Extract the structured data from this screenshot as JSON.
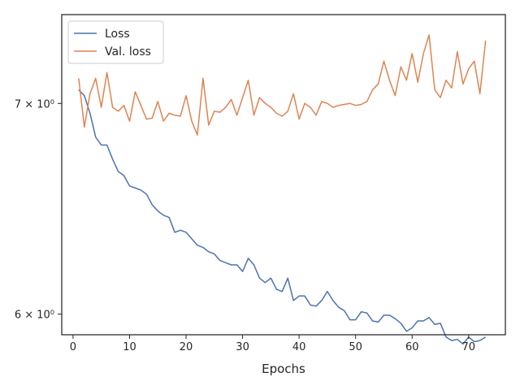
{
  "chart_data": {
    "type": "line",
    "xlabel": "Epochs",
    "ylabel": "",
    "yscale": "log",
    "xlim": [
      -2,
      76.5
    ],
    "ylim": [
      5.91,
      7.47
    ],
    "xticks": [
      0,
      10,
      20,
      30,
      40,
      50,
      60,
      70
    ],
    "yticks": [
      {
        "value": 6,
        "label": "6 × 10⁰"
      },
      {
        "value": 7,
        "label": "7 × 10⁰"
      }
    ],
    "grid": false,
    "legend": "top-left",
    "series": [
      {
        "name": "Loss",
        "color": "#4c72b0",
        "x": [
          1,
          2,
          3,
          4,
          5,
          6,
          7,
          8,
          9,
          10,
          11,
          12,
          13,
          14,
          15,
          16,
          17,
          18,
          19,
          20,
          21,
          22,
          23,
          24,
          25,
          26,
          27,
          28,
          29,
          30,
          31,
          32,
          33,
          34,
          35,
          36,
          37,
          38,
          39,
          40,
          41,
          42,
          43,
          44,
          45,
          46,
          47,
          48,
          49,
          50,
          51,
          52,
          53,
          54,
          55,
          56,
          57,
          58,
          59,
          60,
          61,
          62,
          63,
          64,
          65,
          66,
          67,
          68,
          69,
          70,
          71,
          72,
          73
        ],
        "values": [
          7.07,
          7.04,
          6.95,
          6.83,
          6.79,
          6.79,
          6.72,
          6.66,
          6.64,
          6.59,
          6.58,
          6.57,
          6.55,
          6.5,
          6.47,
          6.45,
          6.44,
          6.37,
          6.38,
          6.37,
          6.34,
          6.31,
          6.3,
          6.28,
          6.27,
          6.24,
          6.23,
          6.22,
          6.22,
          6.19,
          6.25,
          6.22,
          6.16,
          6.14,
          6.16,
          6.11,
          6.1,
          6.16,
          6.06,
          6.08,
          6.08,
          6.04,
          6.035,
          6.06,
          6.1,
          6.06,
          6.03,
          6.015,
          5.975,
          5.975,
          6.01,
          6.005,
          5.97,
          5.965,
          5.995,
          5.995,
          5.98,
          5.96,
          5.925,
          5.94,
          5.97,
          5.97,
          5.985,
          5.955,
          5.96,
          5.9,
          5.885,
          5.89,
          5.87,
          5.9,
          5.88,
          5.885,
          5.9
        ]
      },
      {
        "name": "Val. loss",
        "color": "#dd8452",
        "x": [
          1,
          2,
          3,
          4,
          5,
          6,
          7,
          8,
          9,
          10,
          11,
          12,
          13,
          14,
          15,
          16,
          17,
          18,
          19,
          20,
          21,
          22,
          23,
          24,
          25,
          26,
          27,
          28,
          29,
          30,
          31,
          32,
          33,
          34,
          35,
          36,
          37,
          38,
          39,
          40,
          41,
          42,
          43,
          44,
          45,
          46,
          47,
          48,
          49,
          50,
          51,
          52,
          53,
          54,
          55,
          56,
          57,
          58,
          59,
          60,
          61,
          62,
          63,
          64,
          65,
          66,
          67,
          68,
          69,
          70,
          71,
          72,
          73
        ],
        "values": [
          7.13,
          6.88,
          7.05,
          7.13,
          6.98,
          7.16,
          6.98,
          6.96,
          6.99,
          6.91,
          7.06,
          6.99,
          6.92,
          6.925,
          7.01,
          6.91,
          6.95,
          6.94,
          6.935,
          7.04,
          6.91,
          6.84,
          7.13,
          6.89,
          6.96,
          6.955,
          6.98,
          7.02,
          6.94,
          7.03,
          7.12,
          6.94,
          7.03,
          7.0,
          6.98,
          6.95,
          6.935,
          6.96,
          7.05,
          6.92,
          7.0,
          6.98,
          6.94,
          7.01,
          7.0,
          6.98,
          6.99,
          6.995,
          7.0,
          6.99,
          6.995,
          7.01,
          7.07,
          7.1,
          7.22,
          7.12,
          7.04,
          7.19,
          7.12,
          7.26,
          7.11,
          7.26,
          7.36,
          7.07,
          7.03,
          7.12,
          7.08,
          7.27,
          7.1,
          7.18,
          7.22,
          7.05,
          7.33
        ]
      }
    ]
  }
}
